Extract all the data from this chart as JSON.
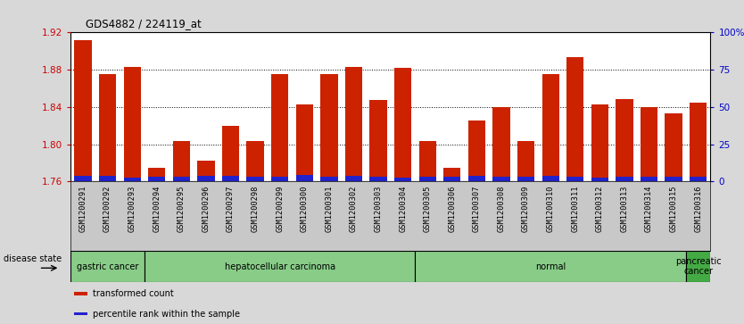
{
  "title": "GDS4882 / 224119_at",
  "samples": [
    "GSM1200291",
    "GSM1200292",
    "GSM1200293",
    "GSM1200294",
    "GSM1200295",
    "GSM1200296",
    "GSM1200297",
    "GSM1200298",
    "GSM1200299",
    "GSM1200300",
    "GSM1200301",
    "GSM1200302",
    "GSM1200303",
    "GSM1200304",
    "GSM1200305",
    "GSM1200306",
    "GSM1200307",
    "GSM1200308",
    "GSM1200309",
    "GSM1200310",
    "GSM1200311",
    "GSM1200312",
    "GSM1200313",
    "GSM1200314",
    "GSM1200315",
    "GSM1200316"
  ],
  "red_values": [
    1.912,
    1.875,
    1.883,
    1.775,
    1.803,
    1.782,
    1.82,
    1.803,
    1.875,
    1.843,
    1.875,
    1.883,
    1.847,
    1.882,
    1.803,
    1.775,
    1.825,
    1.84,
    1.803,
    1.875,
    1.893,
    1.843,
    1.848,
    1.84,
    1.833,
    1.845
  ],
  "blue_heights": [
    0.006,
    0.006,
    0.004,
    0.005,
    0.005,
    0.006,
    0.006,
    0.005,
    0.005,
    0.007,
    0.005,
    0.006,
    0.005,
    0.004,
    0.005,
    0.005,
    0.006,
    0.005,
    0.005,
    0.006,
    0.005,
    0.004,
    0.005,
    0.005,
    0.005,
    0.005
  ],
  "ylim_left": [
    1.76,
    1.92
  ],
  "ylim_right": [
    0,
    100
  ],
  "yticks_left": [
    1.76,
    1.8,
    1.84,
    1.88,
    1.92
  ],
  "yticks_right": [
    0,
    25,
    50,
    75,
    100
  ],
  "ytick_right_labels": [
    "0",
    "25",
    "50",
    "75",
    "100%"
  ],
  "bar_color_red": "#cc2200",
  "bar_color_blue": "#2222cc",
  "bar_width": 0.7,
  "disease_groups": [
    {
      "label": "gastric cancer",
      "start": 0,
      "end": 3
    },
    {
      "label": "hepatocellular carcinoma",
      "start": 3,
      "end": 14
    },
    {
      "label": "normal",
      "start": 14,
      "end": 25
    },
    {
      "label": "pancreatic\ncancer",
      "start": 25,
      "end": 26
    }
  ],
  "disease_state_label": "disease state",
  "legend_items": [
    {
      "label": "transformed count",
      "color": "#cc2200"
    },
    {
      "label": "percentile rank within the sample",
      "color": "#2222cc"
    }
  ],
  "bg_color": "#d8d8d8",
  "plot_bg": "#ffffff",
  "xtick_bg": "#c8c8c8",
  "tick_label_color_left": "#cc0000",
  "tick_label_color_right": "#0000cc",
  "disease_panel_color": "#88cc88",
  "disease_panel_color_dark": "#44aa44"
}
